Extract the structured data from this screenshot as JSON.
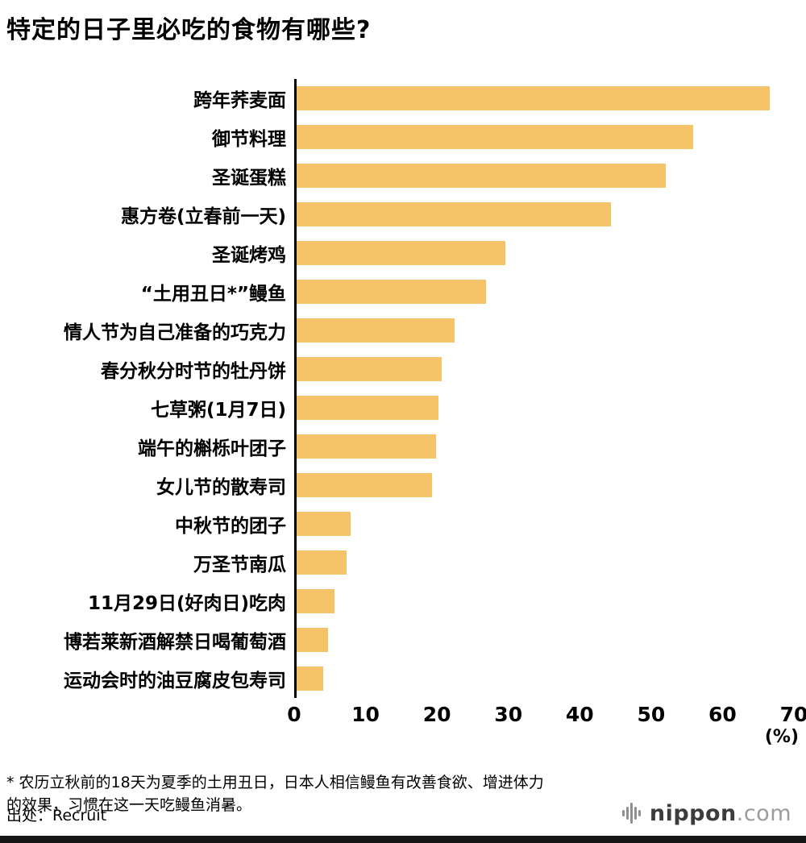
{
  "title": "特定的日子里必吃的食物有哪些?",
  "chart_data": {
    "type": "bar",
    "orientation": "horizontal",
    "title": "特定的日子里必吃的食物有哪些?",
    "categories": [
      "跨年荞麦面",
      "御节料理",
      "圣诞蛋糕",
      "惠方卷(立春前一天)",
      "圣诞烤鸡",
      "“土用丑日*”鳗鱼",
      "情人节为自己准备的巧克力",
      "春分秋分时节的牡丹饼",
      "七草粥(1月7日)",
      "端午的槲栎叶团子",
      "女儿节的散寿司",
      "中秋节的团子",
      "万圣节南瓜",
      "11月29日(好肉日)吃肉",
      "博若莱新酒解禁日喝葡萄酒",
      "运动会时的油豆腐皮包寿司"
    ],
    "values": [
      66.6,
      55.8,
      52.0,
      44.2,
      29.4,
      26.7,
      22.2,
      20.4,
      20.0,
      19.6,
      19.1,
      7.6,
      7.0,
      5.3,
      4.4,
      3.8
    ],
    "xlim": [
      0,
      70
    ],
    "ticks": [
      0,
      10,
      20,
      30,
      40,
      50,
      60,
      70
    ],
    "unit_label": "(%)",
    "bar_color": "#F6C468",
    "axis_color": "#000000",
    "grid": false,
    "legend": false
  },
  "footnote": "* 农历立秋前的18天为夏季的土用丑日，日本人相信鳗鱼有改善食欲、增进体力的效果，习惯在这一天吃鳗鱼消暑。",
  "source": "出处：Recruit",
  "logo": {
    "name": "nippon",
    "suffix": ".com"
  }
}
